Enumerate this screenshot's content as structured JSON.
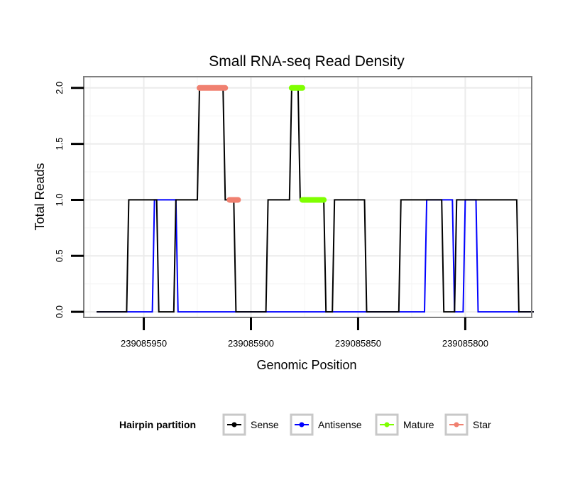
{
  "chart_data": {
    "type": "line",
    "title": "Small RNA-seq Read Density",
    "xlabel": "Genomic Position",
    "ylabel": "Total Reads",
    "x_reversed": true,
    "xlim": [
      239085978,
      239085769
    ],
    "ylim": [
      -0.05,
      2.1
    ],
    "xticks": [
      {
        "value": 239085950,
        "label": "239085950"
      },
      {
        "value": 239085900,
        "label": "239085900"
      },
      {
        "value": 239085850,
        "label": "239085850"
      },
      {
        "value": 239085800,
        "label": "239085800"
      }
    ],
    "yticks": [
      {
        "value": 0.0,
        "label": "0.0"
      },
      {
        "value": 0.5,
        "label": "0.5"
      },
      {
        "value": 1.0,
        "label": "1.0"
      },
      {
        "value": 1.5,
        "label": "1.5"
      },
      {
        "value": 2.0,
        "label": "2.0"
      }
    ],
    "grid": true,
    "series": [
      {
        "name": "Sense",
        "kind": "line",
        "color": "#000000",
        "points": [
          [
            239085972,
            0
          ],
          [
            239085958,
            0
          ],
          [
            239085957,
            1
          ],
          [
            239085944,
            1
          ],
          [
            239085943,
            0
          ],
          [
            239085936,
            0
          ],
          [
            239085935,
            1
          ],
          [
            239085925,
            1
          ],
          [
            239085924,
            2
          ],
          [
            239085913,
            2
          ],
          [
            239085912,
            1
          ],
          [
            239085908,
            1
          ],
          [
            239085907,
            0
          ],
          [
            239085893,
            0
          ],
          [
            239085892,
            1
          ],
          [
            239085882,
            1
          ],
          [
            239085881,
            2
          ],
          [
            239085878,
            2
          ],
          [
            239085877,
            1
          ],
          [
            239085866,
            1
          ],
          [
            239085865,
            0
          ],
          [
            239085862,
            0
          ],
          [
            239085861,
            1
          ],
          [
            239085847,
            1
          ],
          [
            239085846,
            0
          ],
          [
            239085831,
            0
          ],
          [
            239085830,
            1
          ],
          [
            239085811,
            1
          ],
          [
            239085810,
            0
          ],
          [
            239085805,
            0
          ],
          [
            239085804,
            1
          ],
          [
            239085776,
            1
          ],
          [
            239085775,
            0
          ],
          [
            239085768,
            0
          ]
        ]
      },
      {
        "name": "Antisense",
        "kind": "line",
        "color": "#0000ff",
        "points": [
          [
            239085972,
            0
          ],
          [
            239085946,
            0
          ],
          [
            239085945,
            1
          ],
          [
            239085935,
            1
          ],
          [
            239085934,
            0
          ],
          [
            239085819,
            0
          ],
          [
            239085818,
            1
          ],
          [
            239085806,
            1
          ],
          [
            239085805,
            0
          ],
          [
            239085801,
            0
          ],
          [
            239085800,
            1
          ],
          [
            239085795,
            1
          ],
          [
            239085794,
            0
          ],
          [
            239085768,
            0
          ]
        ]
      },
      {
        "name": "Mature",
        "kind": "segment",
        "color": "#7fff00",
        "segments": [
          {
            "x": [
              239085881,
              239085876
            ],
            "y": 2
          },
          {
            "x": [
              239085876,
              239085866
            ],
            "y": 1
          }
        ]
      },
      {
        "name": "Star",
        "kind": "segment",
        "color": "#f08070",
        "segments": [
          {
            "x": [
              239085924,
              239085912
            ],
            "y": 2
          },
          {
            "x": [
              239085910,
              239085906
            ],
            "y": 1
          }
        ]
      }
    ],
    "legend": {
      "position": "bottom",
      "title": "Hairpin partition",
      "items": [
        {
          "label": "Sense",
          "color": "#000000"
        },
        {
          "label": "Antisense",
          "color": "#0000ff"
        },
        {
          "label": "Mature",
          "color": "#7fff00"
        },
        {
          "label": "Star",
          "color": "#f08070"
        }
      ]
    }
  }
}
